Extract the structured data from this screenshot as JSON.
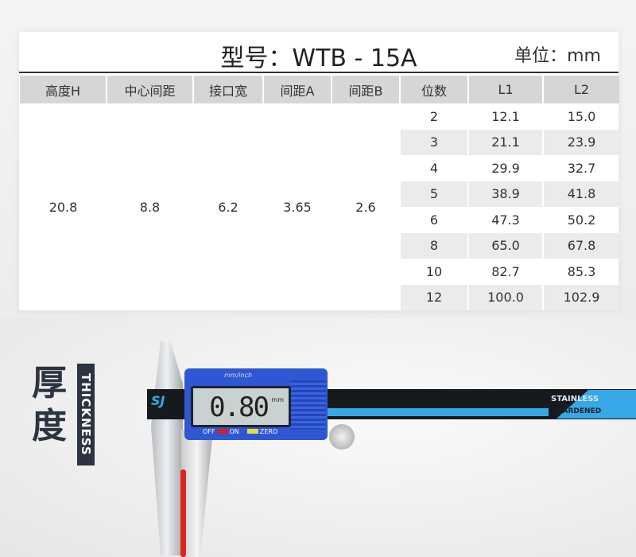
{
  "title": {
    "model": "型号：WTB - 15A",
    "unit": "单位：mm"
  },
  "table": {
    "headers": [
      "高度H",
      "中心间距",
      "接口宽",
      "间距A",
      "间距B",
      "位数",
      "L1",
      "L2"
    ],
    "merged": [
      "20.8",
      "8.8",
      "6.2",
      "3.65",
      "2.6"
    ],
    "rows": [
      [
        "2",
        "12.1",
        "15.0"
      ],
      [
        "3",
        "21.1",
        "23.9"
      ],
      [
        "4",
        "29.9",
        "32.7"
      ],
      [
        "5",
        "38.9",
        "41.8"
      ],
      [
        "6",
        "47.3",
        "50.2"
      ],
      [
        "8",
        "65.0",
        "67.8"
      ],
      [
        "10",
        "82.7",
        "85.3"
      ],
      [
        "12",
        "100.0",
        "102.9"
      ]
    ]
  },
  "thickness": {
    "cn": "厚度",
    "en": "THICKNESS"
  },
  "caliper": {
    "brand": "SJ",
    "reading": "0.80",
    "unit": "mm",
    "mode": "mm/inch",
    "off": "OFF",
    "on": "ON",
    "zero": "ZERO",
    "stainless": "STAINLESS",
    "hardened": "HARDENED"
  },
  "colors": {
    "scale_blue": "#36a8e6",
    "body_blue": "#2f57d3",
    "label_dark": "#2b3440"
  }
}
